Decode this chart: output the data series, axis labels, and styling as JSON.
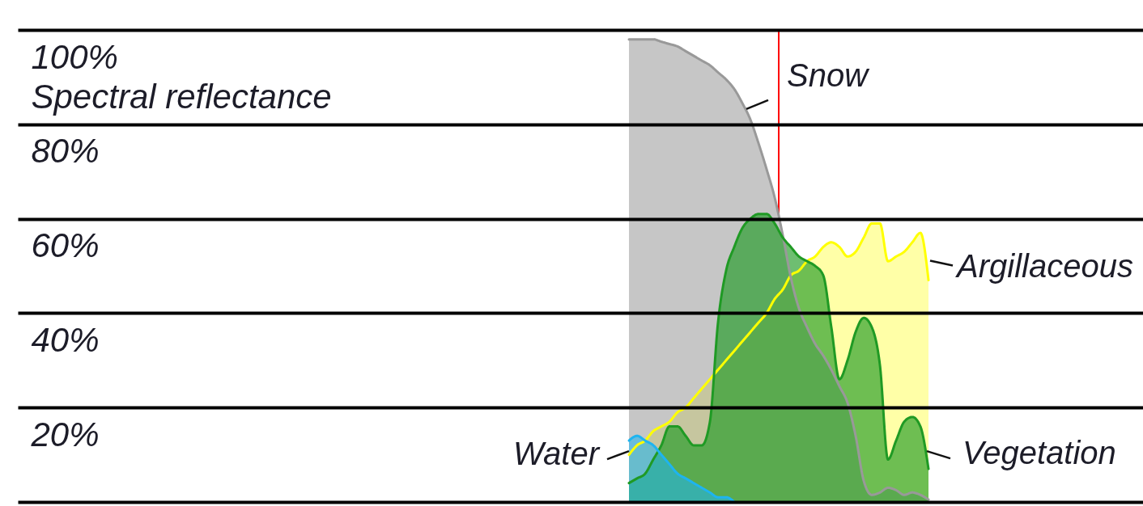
{
  "chart_data": {
    "type": "area",
    "ylabel": "Spectral reflectance",
    "categories": [
      null,
      null,
      null,
      null,
      null,
      null,
      null,
      null,
      null,
      null,
      null,
      null,
      null,
      null,
      null,
      null,
      null,
      null,
      null,
      null,
      null,
      null,
      null,
      null,
      null,
      null,
      null,
      null,
      null,
      null,
      null,
      null,
      null,
      null,
      null,
      null,
      null,
      null,
      null,
      null,
      null,
      null,
      null,
      null,
      null,
      null,
      null,
      null,
      null,
      null,
      null,
      null,
      null,
      null,
      null,
      null,
      null,
      null,
      null,
      null,
      null,
      null,
      null,
      null,
      null,
      null,
      null,
      null,
      null,
      null,
      null,
      null,
      null,
      null,
      null,
      null,
      null,
      null,
      null,
      null,
      null,
      null,
      null,
      null,
      null,
      null,
      null,
      null,
      null,
      null,
      null,
      null,
      null,
      null,
      null,
      null,
      null,
      null,
      null,
      null,
      null,
      null,
      null,
      null,
      null,
      null,
      null,
      null,
      null,
      null,
      null,
      null,
      null,
      null,
      null,
      null,
      null,
      null,
      null,
      null,
      null,
      null,
      null,
      null,
      null,
      null,
      null,
      null,
      null,
      null,
      null,
      null,
      null,
      null,
      null,
      null,
      null,
      null,
      null
    ],
    "series": [
      {
        "name": "Argillaceous",
        "color": "#ffff00",
        "values": [
          null,
          null,
          null,
          null,
          null,
          null,
          null,
          null,
          null,
          null,
          null,
          null,
          null,
          null,
          null,
          null,
          null,
          null,
          null,
          null,
          null,
          null,
          null,
          null,
          null,
          null,
          null,
          null,
          null,
          null,
          null,
          null,
          null,
          null,
          null,
          null,
          null,
          null,
          null,
          null,
          null,
          null,
          null,
          null,
          null,
          null,
          null,
          null,
          null,
          null,
          null,
          null,
          null,
          null,
          null,
          null,
          null,
          null,
          null,
          null,
          null,
          null,
          null,
          null,
          null,
          null,
          null,
          null,
          null,
          null,
          null,
          null,
          null,
          null,
          null,
          10,
          12,
          13,
          15,
          16,
          17,
          19,
          20,
          22,
          24,
          26,
          28,
          30,
          32,
          34,
          36,
          38,
          40,
          43,
          45,
          48,
          49,
          51,
          52,
          54,
          55,
          54,
          52,
          53,
          56,
          59,
          59,
          51,
          52,
          53,
          55,
          57,
          47,
          null,
          null,
          null,
          null,
          null,
          null,
          null,
          null,
          null,
          null,
          null,
          null,
          null,
          null,
          null,
          null,
          null,
          null,
          null,
          null,
          null,
          null,
          null,
          null,
          null,
          null
        ]
      },
      {
        "name": "Snow",
        "color": "#999999",
        "values": [
          null,
          null,
          null,
          null,
          null,
          null,
          null,
          null,
          null,
          null,
          null,
          null,
          null,
          null,
          null,
          null,
          null,
          null,
          null,
          null,
          null,
          null,
          null,
          null,
          null,
          null,
          null,
          null,
          null,
          null,
          null,
          null,
          null,
          null,
          null,
          null,
          null,
          null,
          null,
          null,
          null,
          null,
          null,
          null,
          null,
          null,
          null,
          null,
          null,
          null,
          null,
          null,
          null,
          null,
          null,
          null,
          null,
          null,
          null,
          null,
          null,
          null,
          null,
          null,
          null,
          null,
          null,
          null,
          null,
          null,
          null,
          null,
          null,
          null,
          null,
          98,
          98,
          98,
          98,
          97.5,
          97,
          96.5,
          95.5,
          94.5,
          93.5,
          92.5,
          91,
          89.5,
          87.5,
          84.5,
          81,
          76,
          70.5,
          64.5,
          56.5,
          47.5,
          41,
          37,
          33.5,
          31,
          28,
          24.5,
          21,
          14,
          4.5,
          1.5,
          2,
          3,
          2.5,
          1.5,
          2,
          1.5,
          0.5,
          null,
          null,
          null,
          null,
          null,
          null,
          null,
          null,
          null,
          null,
          null,
          null,
          null,
          null,
          null,
          null,
          null,
          null,
          null,
          null,
          null,
          null,
          null,
          null,
          null,
          null
        ]
      },
      {
        "name": "Vegetation",
        "color": "#1f9a24",
        "values": [
          null,
          null,
          null,
          null,
          null,
          null,
          null,
          null,
          null,
          null,
          null,
          null,
          null,
          null,
          null,
          null,
          null,
          null,
          null,
          null,
          null,
          null,
          null,
          null,
          null,
          null,
          null,
          null,
          null,
          null,
          null,
          null,
          null,
          null,
          null,
          null,
          null,
          null,
          null,
          null,
          null,
          null,
          null,
          null,
          null,
          null,
          null,
          null,
          null,
          null,
          null,
          null,
          null,
          null,
          null,
          null,
          null,
          null,
          null,
          null,
          null,
          null,
          null,
          null,
          null,
          null,
          null,
          null,
          null,
          null,
          null,
          null,
          null,
          null,
          null,
          4,
          5,
          6,
          9,
          12,
          16,
          16,
          14,
          12,
          12,
          17,
          38,
          49,
          54,
          58,
          60,
          61,
          61,
          59,
          56,
          54,
          52,
          51,
          50,
          48,
          37,
          26,
          30,
          36,
          39,
          37,
          29,
          9,
          13,
          17,
          18,
          16,
          7,
          null,
          null,
          null,
          null,
          null,
          null,
          null,
          null,
          null,
          null,
          null,
          null,
          null,
          null,
          null,
          null,
          null,
          null,
          null,
          null,
          null,
          null,
          null,
          null,
          null,
          null
        ]
      },
      {
        "name": "Water",
        "color": "#1eb4f0",
        "values": [
          null,
          null,
          null,
          null,
          null,
          null,
          null,
          null,
          null,
          null,
          null,
          null,
          null,
          null,
          null,
          null,
          null,
          null,
          null,
          null,
          null,
          null,
          null,
          null,
          null,
          null,
          null,
          null,
          null,
          null,
          null,
          null,
          null,
          null,
          null,
          null,
          null,
          null,
          null,
          null,
          null,
          null,
          null,
          null,
          null,
          null,
          null,
          null,
          null,
          null,
          null,
          null,
          null,
          null,
          null,
          null,
          null,
          null,
          null,
          null,
          null,
          null,
          null,
          null,
          null,
          null,
          null,
          null,
          null,
          null,
          null,
          null,
          null,
          null,
          null,
          13,
          14,
          13,
          12,
          10,
          8,
          6,
          5,
          4,
          3,
          2,
          1,
          1,
          0,
          null,
          null,
          null,
          null,
          null,
          null,
          null,
          null,
          null,
          null,
          null,
          null,
          null,
          null,
          null,
          null,
          null,
          null,
          null,
          null,
          null,
          null,
          null,
          null,
          null,
          null,
          null,
          null,
          null,
          null,
          null,
          null,
          null,
          null,
          null,
          null,
          null,
          null,
          null,
          null,
          null,
          null,
          null,
          null,
          null,
          null,
          null,
          null,
          null,
          null
        ]
      }
    ],
    "ylim": [
      0,
      100
    ],
    "yticks": [
      {
        "value": 0,
        "label": null
      },
      {
        "value": 20,
        "label": "20%"
      },
      {
        "value": 40,
        "label": "40%"
      },
      {
        "value": 60,
        "label": "60%"
      },
      {
        "value": 80,
        "label": "80%"
      },
      {
        "value": 100,
        "label": "100%"
      }
    ],
    "grid": "y",
    "legend": false,
    "tick_labels": "y"
  }
}
